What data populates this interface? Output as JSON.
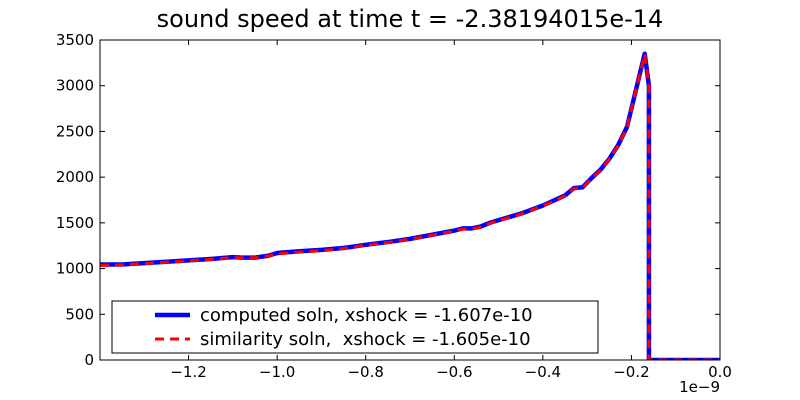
{
  "chart_data": {
    "type": "line",
    "title": "sound speed at time t = -2.38194015e-14",
    "xlabel": "",
    "ylabel": "",
    "x_offset_label": "1e−9",
    "xlim": [
      -1.4,
      0.0
    ],
    "ylim": [
      0,
      3500
    ],
    "xticks": [
      -1.2,
      -1.0,
      -0.8,
      -0.6,
      -0.4,
      -0.2,
      0.0
    ],
    "xtick_labels": [
      "−1.2",
      "−1.0",
      "−0.8",
      "−0.6",
      "−0.4",
      "−0.2",
      "0.0"
    ],
    "yticks": [
      0,
      500,
      1000,
      1500,
      2000,
      2500,
      3000,
      3500
    ],
    "ytick_labels": [
      "0",
      "500",
      "1000",
      "1500",
      "2000",
      "2500",
      "3000",
      "3500"
    ],
    "grid": false,
    "legend_position": "lower-left",
    "series": [
      {
        "name": "computed soln, xshock = -1.607e-10",
        "color": "#0000ff",
        "style": "solid",
        "x": [
          -1.4,
          -1.35,
          -1.3,
          -1.25,
          -1.2,
          -1.15,
          -1.1,
          -1.08,
          -1.05,
          -1.02,
          -1.0,
          -0.95,
          -0.9,
          -0.85,
          -0.8,
          -0.75,
          -0.7,
          -0.65,
          -0.6,
          -0.58,
          -0.56,
          -0.54,
          -0.52,
          -0.5,
          -0.45,
          -0.4,
          -0.35,
          -0.33,
          -0.31,
          -0.29,
          -0.27,
          -0.25,
          -0.23,
          -0.21,
          -0.19,
          -0.17,
          -0.1605,
          -0.1605,
          -0.14,
          -0.1,
          -0.05,
          0.0
        ],
        "y": [
          1045,
          1045,
          1060,
          1075,
          1090,
          1105,
          1125,
          1120,
          1120,
          1140,
          1170,
          1190,
          1205,
          1225,
          1260,
          1290,
          1325,
          1370,
          1415,
          1440,
          1440,
          1460,
          1500,
          1530,
          1600,
          1690,
          1800,
          1880,
          1890,
          1990,
          2080,
          2200,
          2350,
          2550,
          2950,
          3350,
          3000,
          0,
          0,
          0,
          0,
          0
        ]
      },
      {
        "name": "similarity soln,  xshock = -1.605e-10",
        "color": "#ff0000",
        "style": "dashed",
        "x": [
          -1.4,
          -1.35,
          -1.3,
          -1.25,
          -1.2,
          -1.15,
          -1.1,
          -1.08,
          -1.05,
          -1.02,
          -1.0,
          -0.95,
          -0.9,
          -0.85,
          -0.8,
          -0.75,
          -0.7,
          -0.65,
          -0.6,
          -0.58,
          -0.56,
          -0.54,
          -0.52,
          -0.5,
          -0.45,
          -0.4,
          -0.35,
          -0.33,
          -0.31,
          -0.29,
          -0.27,
          -0.25,
          -0.23,
          -0.21,
          -0.19,
          -0.17,
          -0.1605,
          -0.1605,
          -0.14,
          -0.1,
          -0.05,
          0.0
        ],
        "y": [
          1035,
          1040,
          1055,
          1070,
          1085,
          1100,
          1120,
          1118,
          1118,
          1138,
          1160,
          1180,
          1195,
          1220,
          1255,
          1285,
          1320,
          1365,
          1410,
          1432,
          1435,
          1455,
          1495,
          1525,
          1595,
          1685,
          1795,
          1875,
          1885,
          1985,
          2075,
          2195,
          2345,
          2545,
          2945,
          3345,
          3000,
          0,
          0,
          0,
          0,
          0
        ]
      }
    ]
  }
}
